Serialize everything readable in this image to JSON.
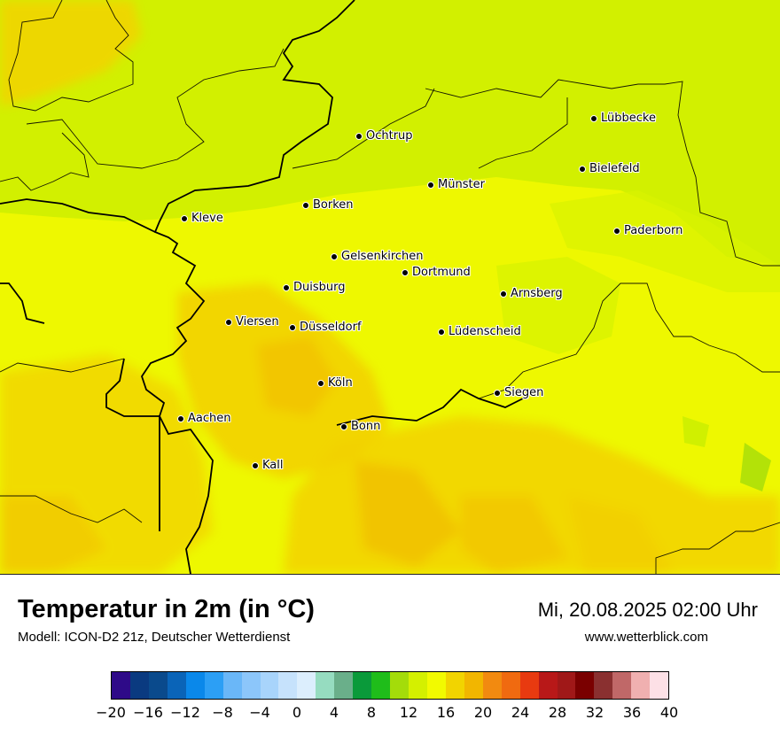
{
  "title": "Temperatur in 2m (in °C)",
  "subtitle": "Modell: ICON-D2 21z, Deutscher Wetterdienst",
  "datetime": "Mi, 20.08.2025 02:00 Uhr",
  "website": "www.wetterblick.com",
  "cities": [
    {
      "name": "Lübbecke"
    },
    {
      "name": "Ochtrup"
    },
    {
      "name": "Bielefeld"
    },
    {
      "name": "Münster"
    },
    {
      "name": "Borken"
    },
    {
      "name": "Kleve"
    },
    {
      "name": "Paderborn"
    },
    {
      "name": "Gelsenkirchen"
    },
    {
      "name": "Dortmund"
    },
    {
      "name": "Duisburg"
    },
    {
      "name": "Arnsberg"
    },
    {
      "name": "Viersen"
    },
    {
      "name": "Düsseldorf"
    },
    {
      "name": "Lüdenscheid"
    },
    {
      "name": "Köln"
    },
    {
      "name": "Siegen"
    },
    {
      "name": "Aachen"
    },
    {
      "name": "Bonn"
    },
    {
      "name": "Kall"
    }
  ],
  "legend": {
    "colors": [
      "#2e0a88",
      "#0a3a80",
      "#0a4a8c",
      "#0a64b8",
      "#0a88ea",
      "#2c9ff5",
      "#6ab7f8",
      "#8cc6fa",
      "#a8d4fb",
      "#c6e2fc",
      "#dceefd",
      "#96dcc0",
      "#6aaf8a",
      "#0a9a3a",
      "#1fbd1a",
      "#a4dc0a",
      "#d4f000",
      "#f2fa00",
      "#f2d400",
      "#f2b600",
      "#f28a10",
      "#f06a10",
      "#e83a10",
      "#b81818",
      "#a01818",
      "#7a0000",
      "#8a3030",
      "#c06868",
      "#f0b0b0",
      "#fde0e6"
    ],
    "ticks": [
      "−20",
      "−16",
      "−12",
      "−8",
      "−4",
      "0",
      "4",
      "8",
      "12",
      "16",
      "20",
      "24",
      "28",
      "32",
      "36",
      "40"
    ]
  }
}
